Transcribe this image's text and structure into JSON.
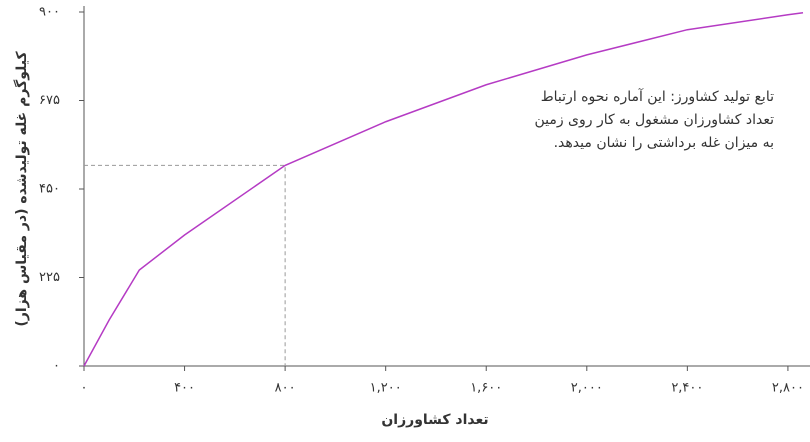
{
  "chart_data": {
    "type": "line",
    "annotation": [
      "تابع تولید کشاورز: این آماره نحوه ارتباط",
      "تعداد کشاورزان مشغول به کار روی زمین",
      "به میزان غله برداشتی را نشان میدهد."
    ],
    "x_label": "تعداد کشاورزان",
    "y_label": "کیلوگرم غله تولیدشده (در مقیاس هزار)",
    "x": [
      0,
      100,
      220,
      400,
      800,
      1200,
      1600,
      2000,
      2400,
      2800,
      2860
    ],
    "series": [
      {
        "color": "#b53bc4",
        "values": [
          0,
          117,
          244,
          333,
          510,
          621,
          715,
          791,
          855,
          893,
          898
        ]
      }
    ],
    "marker": {
      "x": 800,
      "y": 510
    },
    "xlim": [
      0,
      2860
    ],
    "ylim": [
      0,
      900
    ],
    "xticks": [
      {
        "value": 0,
        "label": "۰"
      },
      {
        "value": 400,
        "label": "۴۰۰"
      },
      {
        "value": 800,
        "label": "۸۰۰"
      },
      {
        "value": 1200,
        "label": "۱,۲۰۰"
      },
      {
        "value": 1600,
        "label": "۱,۶۰۰"
      },
      {
        "value": 2000,
        "label": "۲,۰۰۰"
      },
      {
        "value": 2400,
        "label": "۲,۴۰۰"
      },
      {
        "value": 2800,
        "label": "۲,۸۰۰"
      }
    ],
    "yticks": [
      {
        "value": 0,
        "label": "۰"
      },
      {
        "value": 225,
        "label": "۲۲۵"
      },
      {
        "value": 450,
        "label": "۴۵۰"
      },
      {
        "value": 675,
        "label": "۶۷۵"
      },
      {
        "value": 900,
        "label": "۹۰۰"
      }
    ]
  }
}
